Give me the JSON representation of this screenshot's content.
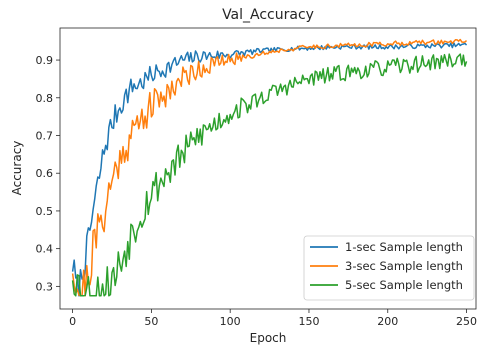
{
  "chart_data": {
    "type": "line",
    "title": "Val_Accuracy",
    "xlabel": "Epoch",
    "ylabel": "Accuracy",
    "xlim": [
      -8,
      256
    ],
    "ylim": [
      0.24,
      0.985
    ],
    "xticks": [
      0,
      50,
      100,
      150,
      200,
      250
    ],
    "yticks": [
      0.3,
      0.4,
      0.5,
      0.6,
      0.7,
      0.8,
      0.9
    ],
    "grid": false,
    "legend_position": "bottom-right",
    "series": [
      {
        "name": "1-sec Sample length",
        "color": "#1f77b4",
        "anchors": [
          [
            0,
            0.36
          ],
          [
            3,
            0.29
          ],
          [
            6,
            0.33
          ],
          [
            10,
            0.42
          ],
          [
            13,
            0.5
          ],
          [
            16,
            0.57
          ],
          [
            20,
            0.66
          ],
          [
            24,
            0.72
          ],
          [
            28,
            0.76
          ],
          [
            33,
            0.8
          ],
          [
            38,
            0.83
          ],
          [
            44,
            0.84
          ],
          [
            50,
            0.86
          ],
          [
            60,
            0.88
          ],
          [
            70,
            0.9
          ],
          [
            80,
            0.91
          ],
          [
            100,
            0.915
          ],
          [
            120,
            0.925
          ],
          [
            140,
            0.93
          ],
          [
            170,
            0.935
          ],
          [
            200,
            0.935
          ],
          [
            250,
            0.94
          ]
        ],
        "noise": [
          0.04,
          0.006
        ],
        "seed": 7
      },
      {
        "name": "3-sec Sample length",
        "color": "#ff7f0e",
        "anchors": [
          [
            0,
            0.37
          ],
          [
            3,
            0.3
          ],
          [
            6,
            0.28
          ],
          [
            10,
            0.33
          ],
          [
            13,
            0.4
          ],
          [
            16,
            0.44
          ],
          [
            20,
            0.5
          ],
          [
            24,
            0.56
          ],
          [
            28,
            0.62
          ],
          [
            33,
            0.67
          ],
          [
            40,
            0.72
          ],
          [
            48,
            0.77
          ],
          [
            56,
            0.8
          ],
          [
            66,
            0.84
          ],
          [
            76,
            0.87
          ],
          [
            90,
            0.89
          ],
          [
            110,
            0.91
          ],
          [
            130,
            0.925
          ],
          [
            150,
            0.935
          ],
          [
            180,
            0.94
          ],
          [
            210,
            0.945
          ],
          [
            250,
            0.95
          ]
        ],
        "noise": [
          0.07,
          0.006
        ],
        "seed": 21
      },
      {
        "name": "5-sec Sample length",
        "color": "#2ca02c",
        "anchors": [
          [
            0,
            0.35
          ],
          [
            4,
            0.3
          ],
          [
            8,
            0.28
          ],
          [
            14,
            0.28
          ],
          [
            20,
            0.29
          ],
          [
            26,
            0.32
          ],
          [
            32,
            0.38
          ],
          [
            38,
            0.45
          ],
          [
            44,
            0.5
          ],
          [
            50,
            0.55
          ],
          [
            60,
            0.6
          ],
          [
            70,
            0.65
          ],
          [
            80,
            0.7
          ],
          [
            90,
            0.73
          ],
          [
            100,
            0.76
          ],
          [
            115,
            0.79
          ],
          [
            130,
            0.82
          ],
          [
            150,
            0.85
          ],
          [
            170,
            0.865
          ],
          [
            190,
            0.875
          ],
          [
            210,
            0.885
          ],
          [
            230,
            0.895
          ],
          [
            250,
            0.905
          ]
        ],
        "noise": [
          0.07,
          0.022
        ],
        "seed": 53
      }
    ]
  }
}
